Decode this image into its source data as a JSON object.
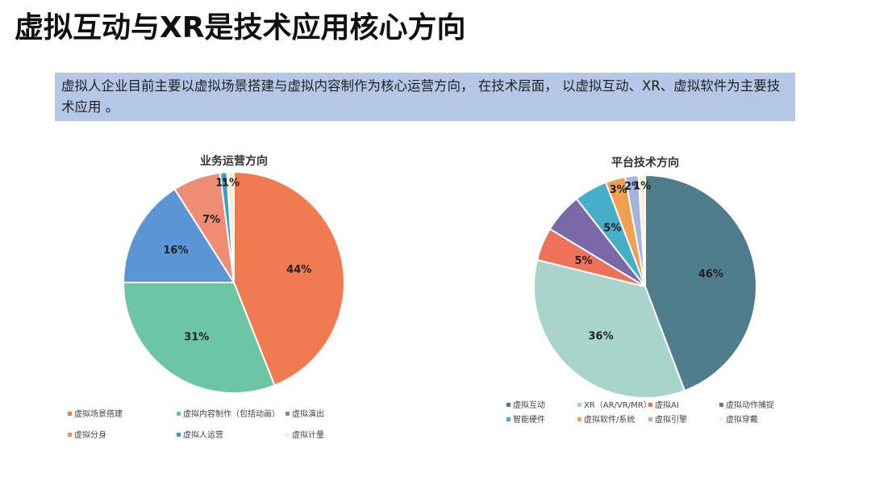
{
  "header": {
    "title": "虚拟互动与XR是技术应用核心方向",
    "text": "虚拟人企业目前主要以虚拟场景搭建与虚拟内容制作为核心运营方向， 在技术层面， 以虚拟互动、XR、虚拟软件为主要技术应用 。"
  },
  "chart_data": [
    {
      "type": "pie",
      "title": "业务运营方向",
      "categories": [
        "虚拟场景搭建",
        "虚拟内容制作（包括动画）",
        "虚拟演出",
        "虚拟分身",
        "虚拟人运营",
        "虚拟计量"
      ],
      "values": [
        44,
        31,
        16,
        7,
        1,
        1
      ],
      "value_labels": [
        "44%",
        "31%",
        "16%",
        "7%",
        "1%",
        "1%"
      ],
      "colors": [
        "#f07b50",
        "#6cc5a4",
        "#5b95d6",
        "#ef8c74",
        "#3a9fc0",
        "#f7efd4"
      ]
    },
    {
      "type": "pie",
      "title": "平台技术方向",
      "categories": [
        "虚拟互动",
        "XR（AR/VR/MR）",
        "虚拟AI",
        "虚拟动作捕捉",
        "智能硬件",
        "虚拟软件/系统",
        "虚拟引擎",
        "虚拟穿戴"
      ],
      "values": [
        46,
        36,
        5,
        6,
        5,
        3,
        2,
        1
      ],
      "value_labels": [
        "46%",
        "36%",
        "5%",
        null,
        "5%",
        "3%",
        "2%",
        "1%"
      ],
      "colors": [
        "#4f7d8c",
        "#a8d4cc",
        "#f0715a",
        "#7b68a8",
        "#46aec9",
        "#f0a050",
        "#a6b4dd",
        "#f8f0d2"
      ]
    }
  ]
}
